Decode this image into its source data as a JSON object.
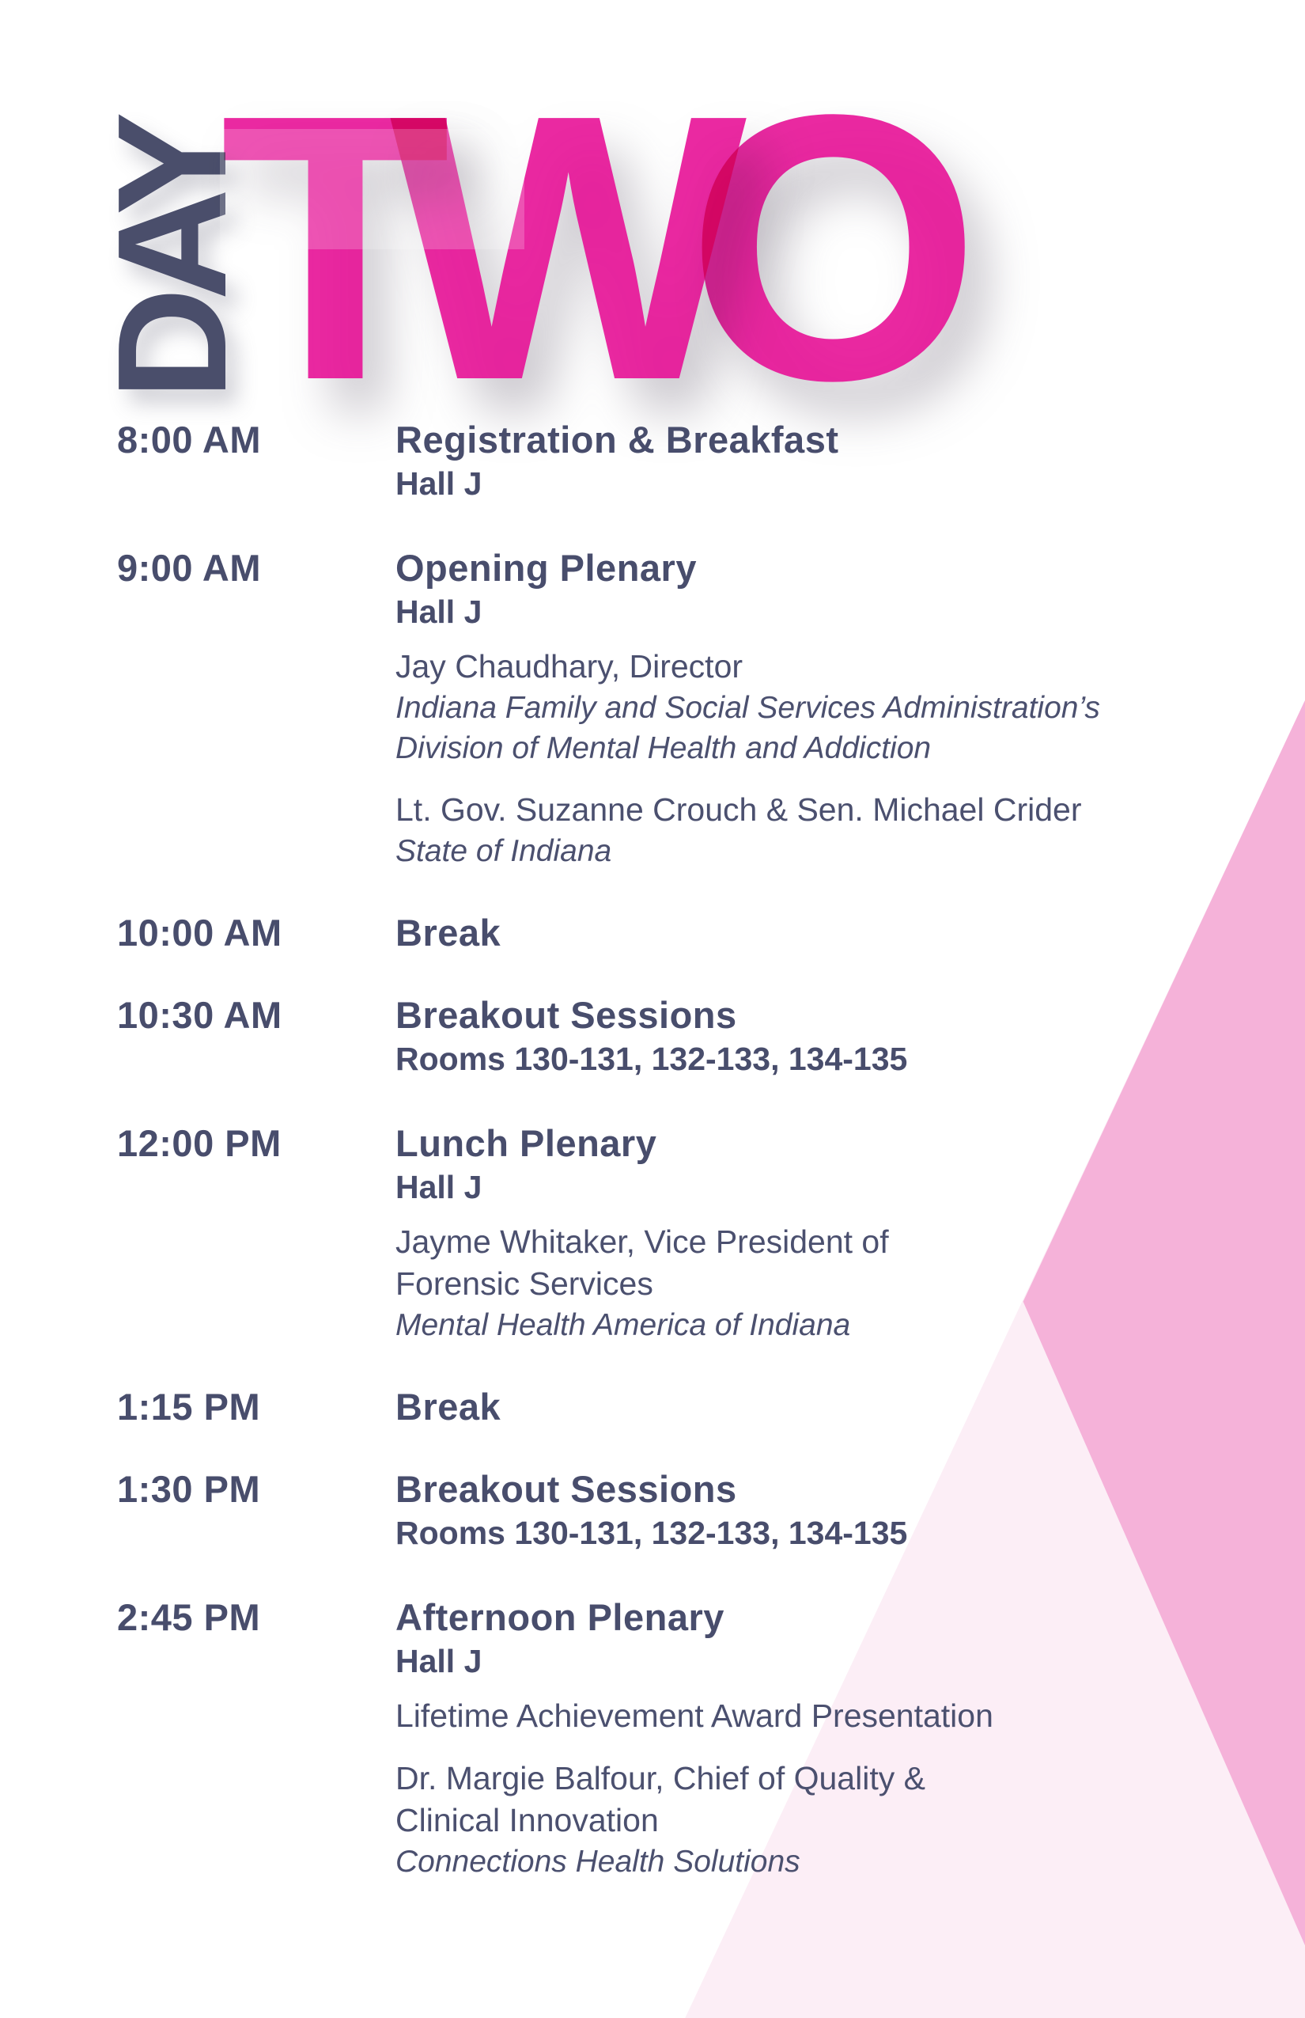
{
  "header": {
    "day_word": "DAY",
    "day_number": "TWO",
    "day_letters": [
      "T",
      "W",
      "O"
    ]
  },
  "colors": {
    "day_word_navy": "#4a4e6b",
    "accent_magenta": "#e81497",
    "schedule_navy": "#484d6c",
    "wedge_light_pink": "#fceef6",
    "wedge_dark_pink": "#f5b2d9",
    "background": "#ffffff"
  },
  "schedule": [
    {
      "time": "8:00 AM",
      "title": "Registration & Breakfast",
      "lines": [
        {
          "style": "location",
          "text": "Hall J"
        }
      ]
    },
    {
      "time": "9:00 AM",
      "title": "Opening Plenary",
      "lines": [
        {
          "style": "location",
          "text": "Hall J"
        },
        {
          "style": "speaker",
          "text": "Jay Chaudhary, Director"
        },
        {
          "style": "org",
          "text": "Indiana Family and Social Services Administration’s"
        },
        {
          "style": "org",
          "text": "Division of Mental Health and Addiction"
        },
        {
          "style": "spacer",
          "text": ""
        },
        {
          "style": "speaker",
          "text": "Lt. Gov. Suzanne Crouch & Sen. Michael Crider"
        },
        {
          "style": "org",
          "text": "State of Indiana"
        }
      ]
    },
    {
      "time": "10:00 AM",
      "title": "Break",
      "lines": []
    },
    {
      "time": "10:30 AM",
      "title": "Breakout Sessions",
      "lines": [
        {
          "style": "location",
          "text": "Rooms 130-131, 132-133, 134-135"
        }
      ]
    },
    {
      "time": "12:00 PM",
      "title": "Lunch Plenary",
      "lines": [
        {
          "style": "location",
          "text": "Hall J"
        },
        {
          "style": "speaker",
          "text": "Jayme Whitaker, Vice President of"
        },
        {
          "style": "speaker-cont",
          "text": "Forensic Services"
        },
        {
          "style": "org",
          "text": "Mental Health America of Indiana"
        }
      ]
    },
    {
      "time": "1:15 PM",
      "title": "Break",
      "lines": []
    },
    {
      "time": "1:30 PM",
      "title": "Breakout Sessions",
      "lines": [
        {
          "style": "location",
          "text": "Rooms 130-131, 132-133, 134-135"
        }
      ]
    },
    {
      "time": "2:45 PM",
      "title": "Afternoon Plenary",
      "lines": [
        {
          "style": "location",
          "text": "Hall J"
        },
        {
          "style": "speaker",
          "text": "Lifetime Achievement Award Presentation"
        },
        {
          "style": "spacer",
          "text": ""
        },
        {
          "style": "speaker",
          "text": "Dr. Margie Balfour, Chief of Quality &"
        },
        {
          "style": "speaker-cont",
          "text": "Clinical Innovation"
        },
        {
          "style": "org",
          "text": "Connections Health Solutions"
        }
      ]
    }
  ]
}
